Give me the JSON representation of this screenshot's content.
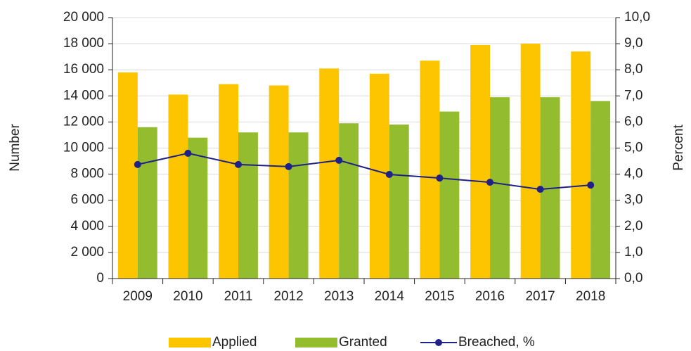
{
  "chart_data": {
    "type": "bar_line",
    "categories": [
      "2009",
      "2010",
      "2011",
      "2012",
      "2013",
      "2014",
      "2015",
      "2016",
      "2017",
      "2018"
    ],
    "series": [
      {
        "name": "Applied",
        "color": "#fdc500",
        "type": "bar",
        "values": [
          15800,
          14100,
          14900,
          14800,
          16100,
          15700,
          16700,
          17900,
          18000,
          17400
        ]
      },
      {
        "name": "Granted",
        "color": "#93bd2f",
        "type": "bar",
        "values": [
          11600,
          10800,
          11200,
          11200,
          11900,
          11800,
          12800,
          13900,
          13900,
          13600
        ]
      },
      {
        "name": "Breached, %",
        "color": "#1f2188",
        "type": "line",
        "axis": "y2",
        "values": [
          4.37,
          4.8,
          4.37,
          4.29,
          4.53,
          3.99,
          3.85,
          3.69,
          3.42,
          3.58
        ]
      }
    ],
    "ylabel": "Number",
    "y2label": "Percent",
    "ylim": [
      0,
      20000
    ],
    "yticks": [
      0,
      {
        "value": 2000,
        "label": "2 000"
      },
      {
        "value": 4000,
        "label": "4 000"
      },
      {
        "value": 6000,
        "label": "6 000"
      },
      {
        "value": 8000,
        "label": "8 000"
      },
      {
        "value": 10000,
        "label": "10 000"
      },
      {
        "value": 12000,
        "label": "12 000"
      },
      {
        "value": 14000,
        "label": "14 000"
      },
      {
        "value": 16000,
        "label": "16 000"
      },
      {
        "value": 18000,
        "label": "18 000"
      },
      {
        "value": 20000,
        "label": "20 000"
      }
    ],
    "y2lim": [
      0,
      10
    ],
    "y2ticks": [
      {
        "value": 0,
        "label": "0,0"
      },
      {
        "value": 1,
        "label": "1,0"
      },
      {
        "value": 2,
        "label": "2,0"
      },
      {
        "value": 3,
        "label": "3,0"
      },
      {
        "value": 4,
        "label": "4,0"
      },
      {
        "value": 5,
        "label": "5,0"
      },
      {
        "value": 6,
        "label": "6,0"
      },
      {
        "value": 7,
        "label": "7,0"
      },
      {
        "value": 8,
        "label": "8,0"
      },
      {
        "value": 9,
        "label": "9,0"
      },
      {
        "value": 10,
        "label": "10,0"
      }
    ],
    "grid": true,
    "legend": "bottom"
  }
}
